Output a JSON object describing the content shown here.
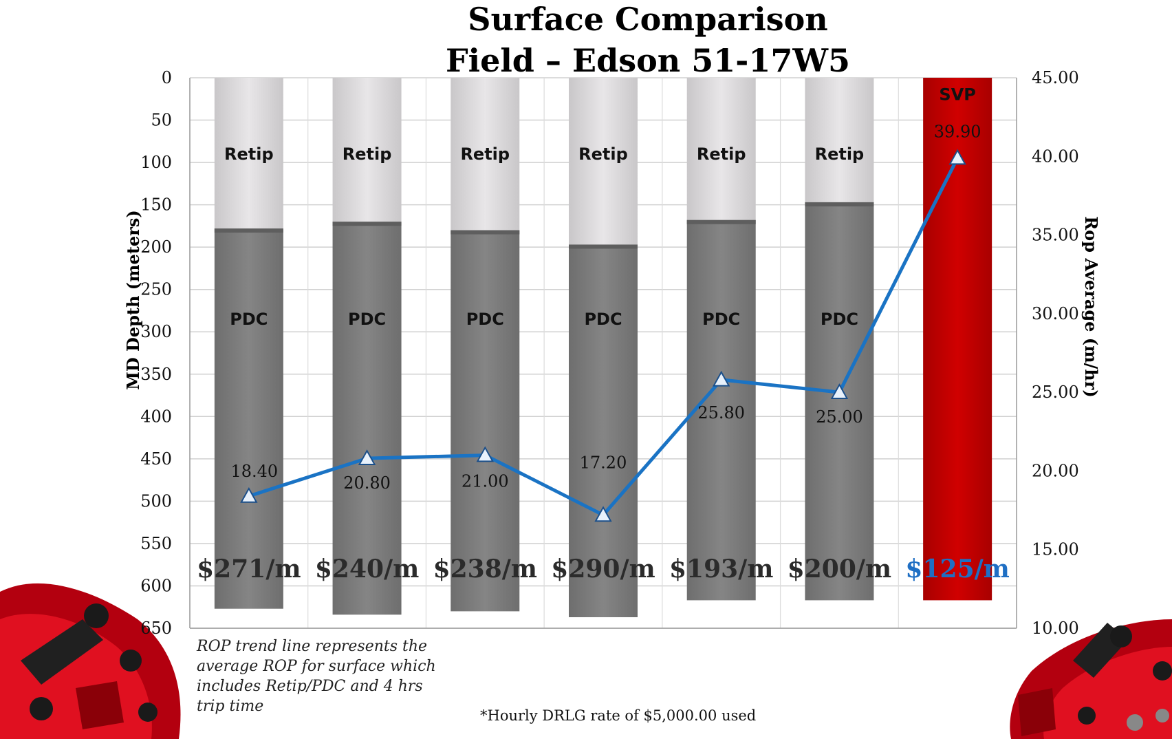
{
  "chart_data": {
    "type": "bar",
    "title": [
      "Surface Comparison",
      "Field – Edson 51-17W5"
    ],
    "ylabel_left": "MD Depth (meters)",
    "ylabel_right": "Rop Average (m/hr)",
    "left_axis": {
      "min": 0,
      "max": 650,
      "step": 50,
      "inverted": true,
      "ticks": [
        "0",
        "50",
        "100",
        "150",
        "200",
        "250",
        "300",
        "350",
        "400",
        "450",
        "500",
        "550",
        "600",
        "650"
      ]
    },
    "right_axis": {
      "min": 10,
      "max": 45,
      "step": 5,
      "ticks": [
        "10.00",
        "15.00",
        "20.00",
        "25.00",
        "30.00",
        "35.00",
        "40.00",
        "45.00"
      ]
    },
    "grid": true,
    "bars": [
      {
        "segments": [
          {
            "label": "Retip",
            "to": 178
          },
          {
            "label": "PDC",
            "to": 627
          }
        ],
        "cost": "$271/m",
        "rop": 18.4,
        "rop_label": "18.40"
      },
      {
        "segments": [
          {
            "label": "Retip",
            "to": 170
          },
          {
            "label": "PDC",
            "to": 634
          }
        ],
        "cost": "$240/m",
        "rop": 20.8,
        "rop_label": "20.80"
      },
      {
        "segments": [
          {
            "label": "Retip",
            "to": 180
          },
          {
            "label": "PDC",
            "to": 630
          }
        ],
        "cost": "$238/m",
        "rop": 21.0,
        "rop_label": "21.00"
      },
      {
        "segments": [
          {
            "label": "Retip",
            "to": 197
          },
          {
            "label": "PDC",
            "to": 637
          }
        ],
        "cost": "$290/m",
        "rop": 17.2,
        "rop_label": "17.20"
      },
      {
        "segments": [
          {
            "label": "Retip",
            "to": 168
          },
          {
            "label": "PDC",
            "to": 617
          }
        ],
        "cost": "$193/m",
        "rop": 25.8,
        "rop_label": "25.80"
      },
      {
        "segments": [
          {
            "label": "Retip",
            "to": 147
          },
          {
            "label": "PDC",
            "to": 617
          }
        ],
        "cost": "$200/m",
        "rop": 25.0,
        "rop_label": "25.00"
      },
      {
        "segments": [
          {
            "label": "SVP",
            "to": 617
          }
        ],
        "cost": "$125/m",
        "rop": 39.9,
        "rop_label": "39.90",
        "highlight": true
      }
    ],
    "colors": {
      "retip": "#dedcde",
      "pdc": "#808080",
      "svp": "#c00000",
      "line": "#1a73c4",
      "highlight_text": "#1f6fc4"
    }
  },
  "notes": {
    "rop_note": "ROP trend line represents the average ROP for surface which includes Retip/PDC and 4 hrs trip time",
    "rate_note": "*Hourly DRLG rate of $5,000.00 used"
  },
  "decor": {
    "left_image": "pdc-drill-bit",
    "right_image": "pdc-drill-bit"
  }
}
